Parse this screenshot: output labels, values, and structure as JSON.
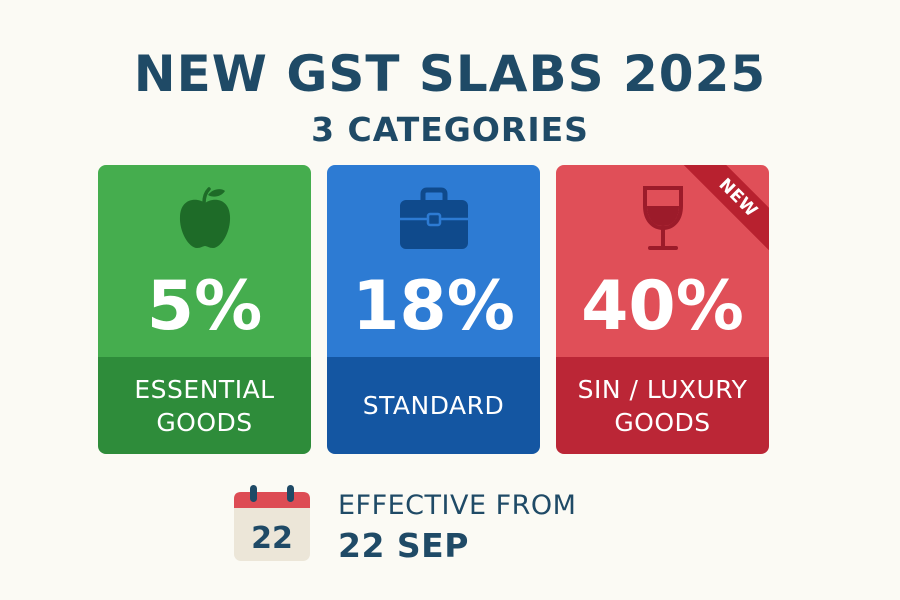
{
  "title": "NEW GST SLABS 2025",
  "subtitle": "3 CATEGORIES",
  "cards": [
    {
      "rate": "5%",
      "label_lines": [
        "ESSENTIAL",
        "GOODS"
      ],
      "icon": "apple-icon",
      "color_top": "#45ad4e",
      "color_bottom": "#2e8c3a"
    },
    {
      "rate": "18%",
      "label_lines": [
        "STANDARD"
      ],
      "icon": "briefcase-icon",
      "color_top": "#2d7bd3",
      "color_bottom": "#1456a2"
    },
    {
      "rate": "40%",
      "label_lines": [
        "SIN / LUXURY",
        "GOODS"
      ],
      "icon": "wine-glass-icon",
      "badge": "NEW",
      "color_top": "#e04f58",
      "color_bottom": "#bb2636"
    }
  ],
  "effective": {
    "calendar_day": "22",
    "line1": "EFFECTIVE FROM",
    "line2": "22 SEP",
    "icon": "calendar-icon"
  },
  "colors": {
    "background": "#fbfaf4",
    "heading": "#1f4a66"
  }
}
